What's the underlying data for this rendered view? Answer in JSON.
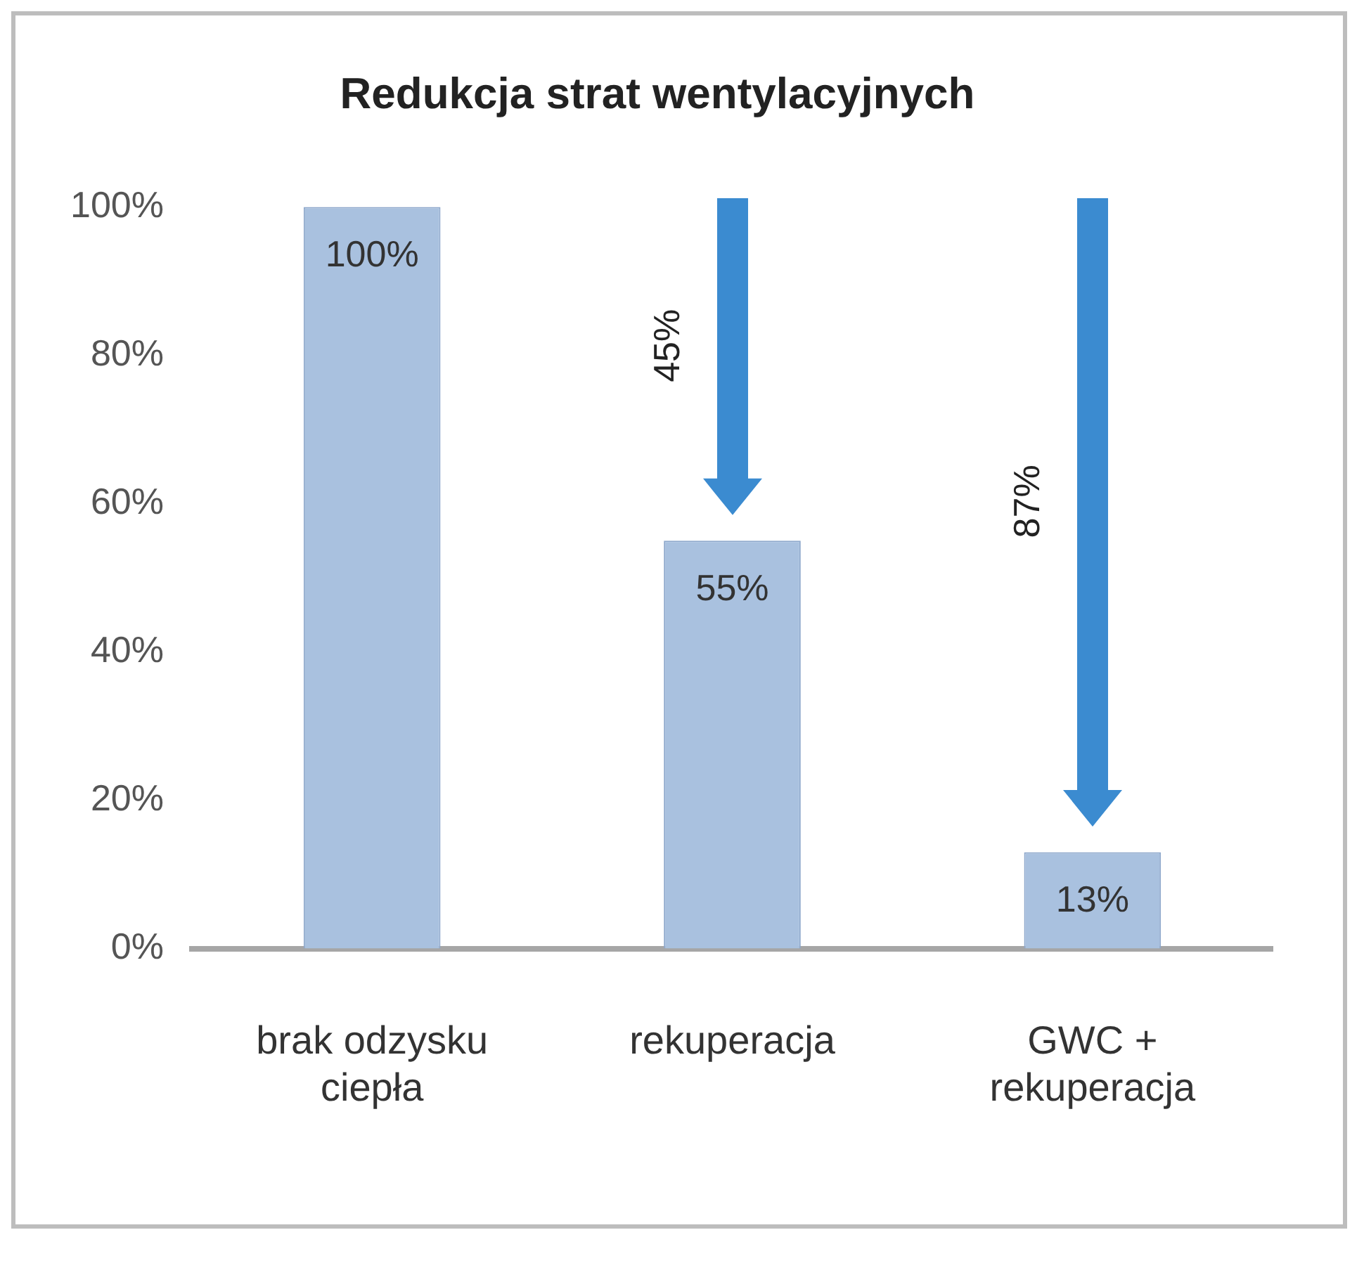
{
  "chart_data": {
    "type": "bar",
    "title": "Redukcja strat wentylacyjnych",
    "categories": [
      "brak odzysku ciepła",
      "rekuperacja",
      "GWC + rekuperacja"
    ],
    "values": [
      100,
      55,
      13
    ],
    "color": "#a9c1df",
    "ylim": [
      0,
      100
    ],
    "yticks": [
      {
        "value": 0,
        "label": "0%"
      },
      {
        "value": 20,
        "label": "20%"
      },
      {
        "value": 40,
        "label": "40%"
      },
      {
        "value": 60,
        "label": "60%"
      },
      {
        "value": 80,
        "label": "80%"
      },
      {
        "value": 100,
        "label": "100%"
      }
    ],
    "grid": false,
    "legend": false,
    "value_labels": [
      "100%",
      "55%",
      "13%"
    ],
    "annotations": [
      "45%",
      "87%"
    ]
  }
}
